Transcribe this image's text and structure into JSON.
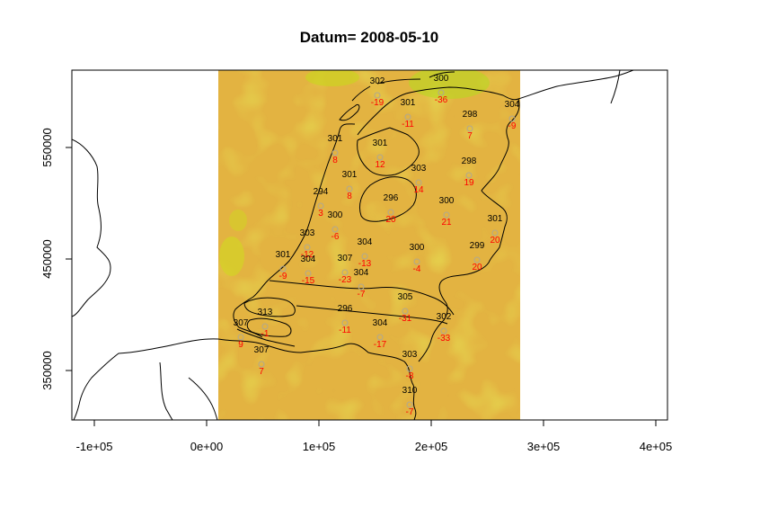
{
  "title": "Datum= 2008-05-10",
  "axes": {
    "x_ticks": [
      {
        "value": -100000,
        "label": "-1e+05"
      },
      {
        "value": 0,
        "label": "0e+00"
      },
      {
        "value": 100000,
        "label": "1e+05"
      },
      {
        "value": 200000,
        "label": "2e+05"
      },
      {
        "value": 300000,
        "label": "3e+05"
      },
      {
        "value": 400000,
        "label": "4e+05"
      }
    ],
    "y_ticks": [
      {
        "value": 350000,
        "label": "350000"
      },
      {
        "value": 450000,
        "label": "450000"
      },
      {
        "value": 550000,
        "label": "550000"
      }
    ]
  },
  "colors": {
    "raster_main": "#e3b341",
    "raster_green": "#c8d81a",
    "station_value": "#000000",
    "station_diff": "#ff0000",
    "station_marker": "#b0a890"
  },
  "stations": [
    {
      "value": "302",
      "diff": "-19"
    },
    {
      "value": "300",
      "diff": "-36"
    },
    {
      "value": "301",
      "diff": "-11"
    },
    {
      "value": "298",
      "diff": "7"
    },
    {
      "value": "304",
      "diff": "-9"
    },
    {
      "value": "301",
      "diff": "8"
    },
    {
      "value": "301",
      "diff": "12"
    },
    {
      "value": "303",
      "diff": "14"
    },
    {
      "value": "298",
      "diff": "19"
    },
    {
      "value": "301",
      "diff": "8"
    },
    {
      "value": "294",
      "diff": "3"
    },
    {
      "value": "296",
      "diff": "20"
    },
    {
      "value": "300",
      "diff": "21"
    },
    {
      "value": "300",
      "diff": "-6"
    },
    {
      "value": "301",
      "diff": "20"
    },
    {
      "value": "303",
      "diff": "-12"
    },
    {
      "value": "304",
      "diff": "-13"
    },
    {
      "value": "300",
      "diff": "-4"
    },
    {
      "value": "299",
      "diff": "20"
    },
    {
      "value": "301",
      "diff": "-9"
    },
    {
      "value": "304",
      "diff": "-15"
    },
    {
      "value": "307",
      "diff": "-23"
    },
    {
      "value": "304",
      "diff": "-7"
    },
    {
      "value": "305",
      "diff": "-31"
    },
    {
      "value": "313",
      "diff": "-1"
    },
    {
      "value": "296",
      "diff": "-11"
    },
    {
      "value": "304",
      "diff": "-17"
    },
    {
      "value": "302",
      "diff": "-33"
    },
    {
      "value": "307",
      "diff": "9"
    },
    {
      "value": "307",
      "diff": "7"
    },
    {
      "value": "303",
      "diff": "-8"
    },
    {
      "value": "310",
      "diff": "-7"
    }
  ]
}
